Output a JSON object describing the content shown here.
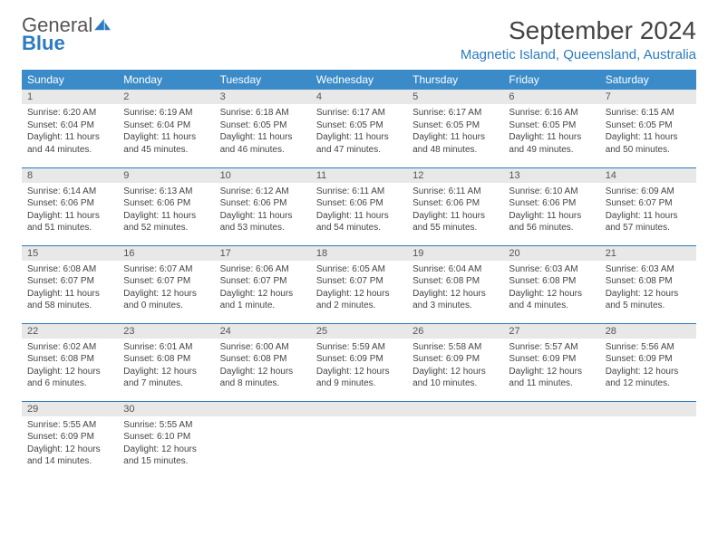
{
  "brand": {
    "name1": "General",
    "name2": "Blue"
  },
  "title": "September 2024",
  "location": "Magnetic Island, Queensland, Australia",
  "colors": {
    "header_bg": "#3b8bc9",
    "accent": "#2b7bbf",
    "daynum_bg": "#e8e8e8",
    "text": "#444444",
    "bg": "#ffffff"
  },
  "weekdays": [
    "Sunday",
    "Monday",
    "Tuesday",
    "Wednesday",
    "Thursday",
    "Friday",
    "Saturday"
  ],
  "days": [
    {
      "n": "1",
      "sr": "Sunrise: 6:20 AM",
      "ss": "Sunset: 6:04 PM",
      "dl": "Daylight: 11 hours and 44 minutes."
    },
    {
      "n": "2",
      "sr": "Sunrise: 6:19 AM",
      "ss": "Sunset: 6:04 PM",
      "dl": "Daylight: 11 hours and 45 minutes."
    },
    {
      "n": "3",
      "sr": "Sunrise: 6:18 AM",
      "ss": "Sunset: 6:05 PM",
      "dl": "Daylight: 11 hours and 46 minutes."
    },
    {
      "n": "4",
      "sr": "Sunrise: 6:17 AM",
      "ss": "Sunset: 6:05 PM",
      "dl": "Daylight: 11 hours and 47 minutes."
    },
    {
      "n": "5",
      "sr": "Sunrise: 6:17 AM",
      "ss": "Sunset: 6:05 PM",
      "dl": "Daylight: 11 hours and 48 minutes."
    },
    {
      "n": "6",
      "sr": "Sunrise: 6:16 AM",
      "ss": "Sunset: 6:05 PM",
      "dl": "Daylight: 11 hours and 49 minutes."
    },
    {
      "n": "7",
      "sr": "Sunrise: 6:15 AM",
      "ss": "Sunset: 6:05 PM",
      "dl": "Daylight: 11 hours and 50 minutes."
    },
    {
      "n": "8",
      "sr": "Sunrise: 6:14 AM",
      "ss": "Sunset: 6:06 PM",
      "dl": "Daylight: 11 hours and 51 minutes."
    },
    {
      "n": "9",
      "sr": "Sunrise: 6:13 AM",
      "ss": "Sunset: 6:06 PM",
      "dl": "Daylight: 11 hours and 52 minutes."
    },
    {
      "n": "10",
      "sr": "Sunrise: 6:12 AM",
      "ss": "Sunset: 6:06 PM",
      "dl": "Daylight: 11 hours and 53 minutes."
    },
    {
      "n": "11",
      "sr": "Sunrise: 6:11 AM",
      "ss": "Sunset: 6:06 PM",
      "dl": "Daylight: 11 hours and 54 minutes."
    },
    {
      "n": "12",
      "sr": "Sunrise: 6:11 AM",
      "ss": "Sunset: 6:06 PM",
      "dl": "Daylight: 11 hours and 55 minutes."
    },
    {
      "n": "13",
      "sr": "Sunrise: 6:10 AM",
      "ss": "Sunset: 6:06 PM",
      "dl": "Daylight: 11 hours and 56 minutes."
    },
    {
      "n": "14",
      "sr": "Sunrise: 6:09 AM",
      "ss": "Sunset: 6:07 PM",
      "dl": "Daylight: 11 hours and 57 minutes."
    },
    {
      "n": "15",
      "sr": "Sunrise: 6:08 AM",
      "ss": "Sunset: 6:07 PM",
      "dl": "Daylight: 11 hours and 58 minutes."
    },
    {
      "n": "16",
      "sr": "Sunrise: 6:07 AM",
      "ss": "Sunset: 6:07 PM",
      "dl": "Daylight: 12 hours and 0 minutes."
    },
    {
      "n": "17",
      "sr": "Sunrise: 6:06 AM",
      "ss": "Sunset: 6:07 PM",
      "dl": "Daylight: 12 hours and 1 minute."
    },
    {
      "n": "18",
      "sr": "Sunrise: 6:05 AM",
      "ss": "Sunset: 6:07 PM",
      "dl": "Daylight: 12 hours and 2 minutes."
    },
    {
      "n": "19",
      "sr": "Sunrise: 6:04 AM",
      "ss": "Sunset: 6:08 PM",
      "dl": "Daylight: 12 hours and 3 minutes."
    },
    {
      "n": "20",
      "sr": "Sunrise: 6:03 AM",
      "ss": "Sunset: 6:08 PM",
      "dl": "Daylight: 12 hours and 4 minutes."
    },
    {
      "n": "21",
      "sr": "Sunrise: 6:03 AM",
      "ss": "Sunset: 6:08 PM",
      "dl": "Daylight: 12 hours and 5 minutes."
    },
    {
      "n": "22",
      "sr": "Sunrise: 6:02 AM",
      "ss": "Sunset: 6:08 PM",
      "dl": "Daylight: 12 hours and 6 minutes."
    },
    {
      "n": "23",
      "sr": "Sunrise: 6:01 AM",
      "ss": "Sunset: 6:08 PM",
      "dl": "Daylight: 12 hours and 7 minutes."
    },
    {
      "n": "24",
      "sr": "Sunrise: 6:00 AM",
      "ss": "Sunset: 6:08 PM",
      "dl": "Daylight: 12 hours and 8 minutes."
    },
    {
      "n": "25",
      "sr": "Sunrise: 5:59 AM",
      "ss": "Sunset: 6:09 PM",
      "dl": "Daylight: 12 hours and 9 minutes."
    },
    {
      "n": "26",
      "sr": "Sunrise: 5:58 AM",
      "ss": "Sunset: 6:09 PM",
      "dl": "Daylight: 12 hours and 10 minutes."
    },
    {
      "n": "27",
      "sr": "Sunrise: 5:57 AM",
      "ss": "Sunset: 6:09 PM",
      "dl": "Daylight: 12 hours and 11 minutes."
    },
    {
      "n": "28",
      "sr": "Sunrise: 5:56 AM",
      "ss": "Sunset: 6:09 PM",
      "dl": "Daylight: 12 hours and 12 minutes."
    },
    {
      "n": "29",
      "sr": "Sunrise: 5:55 AM",
      "ss": "Sunset: 6:09 PM",
      "dl": "Daylight: 12 hours and 14 minutes."
    },
    {
      "n": "30",
      "sr": "Sunrise: 5:55 AM",
      "ss": "Sunset: 6:10 PM",
      "dl": "Daylight: 12 hours and 15 minutes."
    }
  ]
}
